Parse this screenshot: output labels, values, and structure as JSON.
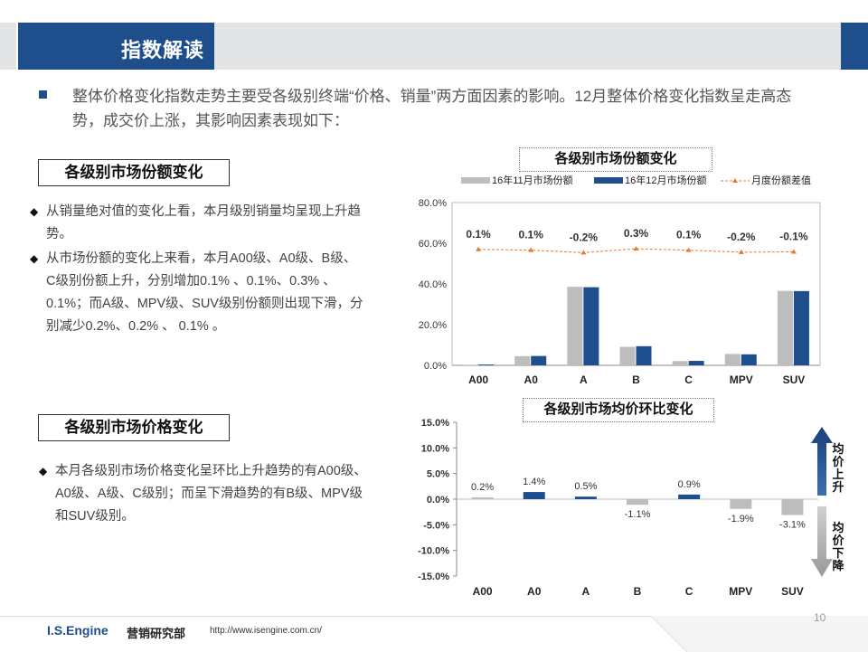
{
  "header": {
    "title": "指数解读"
  },
  "intro": {
    "text": "整体价格变化指数走势主要受各级别终端“价格、销量”两方面因素的影响。12月整体价格变化指数呈走高态势，成交价上涨，其影响因素表现如下："
  },
  "section1": {
    "title": "各级别市场份额变化",
    "bullets": [
      "从销量绝对值的变化上看，本月级别销量均呈现上升趋势。",
      "从市场份额的变化上来看，本月A00级、A0级、B级、C级别份额上升，分别增加0.1% 、0.1%、0.3% 、0.1%；而A级、MPV级、SUV级别份额则出现下滑，分别减少0.2%、0.2% 、 0.1% 。"
    ]
  },
  "section2": {
    "title": "各级别市场价格变化",
    "bullets": [
      "本月各级别市场价格变化呈环比上升趋势的有A00级、A0级、A级、C级别；而呈下滑趋势的有B级、MPV级和SUV级别。"
    ]
  },
  "arrows": {
    "up_label": "均价上升",
    "down_label": "均价下降"
  },
  "footer": {
    "brand": "I.S.Engine",
    "dept": "营销研究部",
    "url": "http://www.isengine.com.cn/",
    "page": "10"
  },
  "colors": {
    "brand_blue": "#1f4e8d",
    "gray_bar": "#bdbdbd",
    "orange_line": "#e8792c",
    "header_gray": "#e3e4e6"
  },
  "chart_data": [
    {
      "type": "bar",
      "title": "各级别市场份额变化",
      "categories": [
        "A00",
        "A0",
        "A",
        "B",
        "C",
        "MPV",
        "SUV"
      ],
      "series": [
        {
          "name": "16年11月市场份额",
          "values": [
            0.3,
            4.5,
            38.6,
            9.1,
            2.1,
            5.6,
            36.6
          ]
        },
        {
          "name": "16年12月市场份额",
          "values": [
            0.4,
            4.6,
            38.4,
            9.4,
            2.2,
            5.4,
            36.5
          ]
        }
      ],
      "line_series": {
        "name": "月度份额差值",
        "labels": [
          "0.1%",
          "0.1%",
          "-0.2%",
          "0.3%",
          "0.1%",
          "-0.2%",
          "-0.1%"
        ],
        "plot_values": [
          57.0,
          56.6,
          55.4,
          57.3,
          56.6,
          55.6,
          55.8
        ]
      },
      "yticks": [
        "80.0%",
        "60.0%",
        "40.0%",
        "20.0%",
        "0.0%"
      ],
      "ylim": [
        0,
        80
      ],
      "legend": "top"
    },
    {
      "type": "bar",
      "title": "各级别市场均价环比变化",
      "categories": [
        "A00",
        "A0",
        "A",
        "B",
        "C",
        "MPV",
        "SUV"
      ],
      "values": [
        0.2,
        1.4,
        0.5,
        -1.1,
        0.9,
        -1.9,
        -3.1
      ],
      "labels": [
        "0.2%",
        "1.4%",
        "0.5%",
        "-1.1%",
        "0.9%",
        "-1.9%",
        "-3.1%"
      ],
      "colors": [
        "#bdbdbd",
        "#1f4e8d",
        "#1f4e8d",
        "#bdbdbd",
        "#1f4e8d",
        "#bdbdbd",
        "#bdbdbd"
      ],
      "yticks": [
        "15.0%",
        "10.0%",
        "5.0%",
        "0.0%",
        "-5.0%",
        "-10.0%",
        "-15.0%"
      ],
      "ylim": [
        -15,
        15
      ]
    }
  ]
}
